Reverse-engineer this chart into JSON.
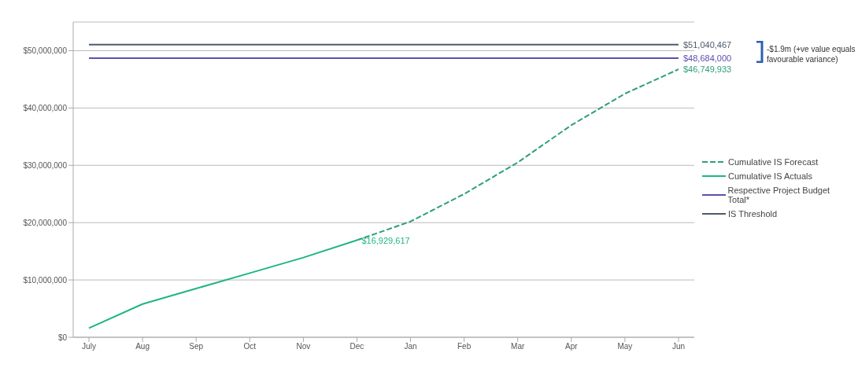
{
  "chart_data": {
    "type": "line",
    "categories": [
      "July",
      "Aug",
      "Sep",
      "Oct",
      "Nov",
      "Dec",
      "Jan",
      "Feb",
      "Mar",
      "Apr",
      "May",
      "Jun"
    ],
    "series": [
      {
        "name": "Cumulative IS Forecast",
        "color": "#2e9e7e",
        "line_style": "dashed",
        "values": [
          null,
          null,
          null,
          null,
          null,
          16929617,
          20200000,
          25000000,
          30500000,
          37000000,
          42500000,
          46749933
        ],
        "value_labels": [
          null,
          null,
          null,
          null,
          null,
          null,
          null,
          null,
          null,
          null,
          null,
          "$46,749,933"
        ]
      },
      {
        "name": "Cumulative IS Actuals",
        "color": "#1fb584",
        "line_style": "solid",
        "values": [
          1600000,
          5800000,
          8500000,
          11200000,
          13900000,
          16929617,
          null,
          null,
          null,
          null,
          null,
          null
        ],
        "value_labels": [
          null,
          null,
          null,
          null,
          null,
          "$16,929,617",
          null,
          null,
          null,
          null,
          null,
          null
        ]
      },
      {
        "name": "Respective Project Budget Total*",
        "color": "#5b4fb0",
        "line_style": "solid",
        "values": [
          48684000,
          48684000,
          48684000,
          48684000,
          48684000,
          48684000,
          48684000,
          48684000,
          48684000,
          48684000,
          48684000,
          48684000
        ],
        "value_labels": [
          null,
          null,
          null,
          null,
          null,
          null,
          null,
          null,
          null,
          null,
          null,
          "$48,684,000"
        ]
      },
      {
        "name": "IS Threshold",
        "color": "#4d5b6b",
        "line_style": "solid",
        "values": [
          51040467,
          51040467,
          51040467,
          51040467,
          51040467,
          51040467,
          51040467,
          51040467,
          51040467,
          51040467,
          51040467,
          51040467
        ],
        "value_labels": [
          null,
          null,
          null,
          null,
          null,
          null,
          null,
          null,
          null,
          null,
          null,
          "$51,040,467"
        ]
      }
    ],
    "ylim": [
      0,
      55000000
    ],
    "yticks": [
      {
        "value": 0,
        "label": "$0"
      },
      {
        "value": 10000000,
        "label": "$10,000,000"
      },
      {
        "value": 20000000,
        "label": "$20,000,000"
      },
      {
        "value": 30000000,
        "label": "$30,000,000"
      },
      {
        "value": 40000000,
        "label": "$40,000,000"
      },
      {
        "value": 50000000,
        "label": "$50,000,000"
      }
    ],
    "grid": "y",
    "legend": "right",
    "marker": "none",
    "annotations": [
      "-$1.9m (+ve value equals favourable variance)"
    ]
  }
}
